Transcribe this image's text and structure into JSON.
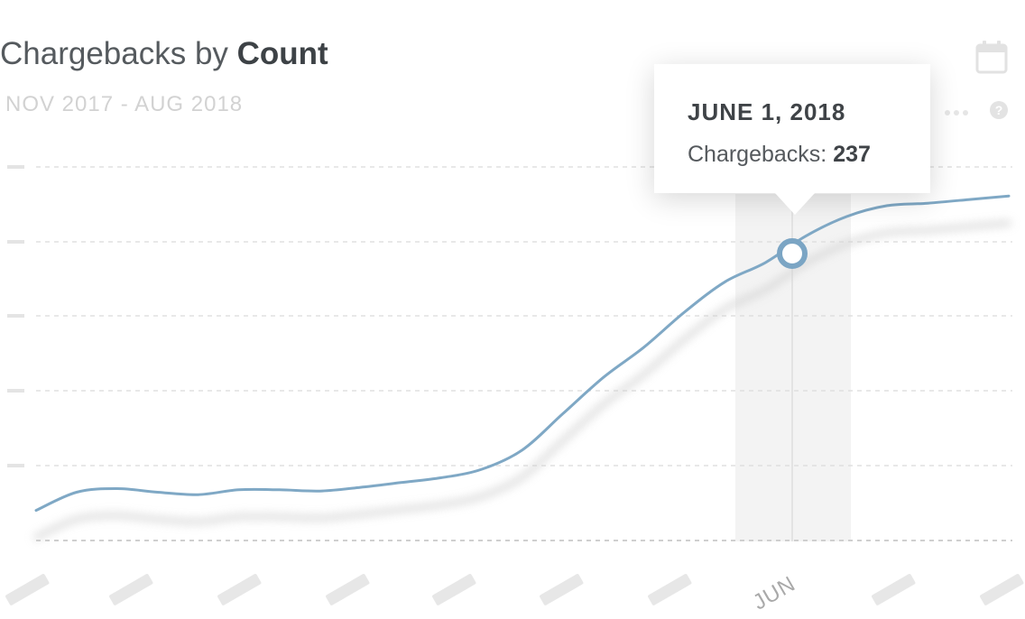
{
  "header": {
    "title_prefix": "Chargebacks by ",
    "title_emphasis": "Count",
    "subtitle": "NOV 2017 - AUG 2018"
  },
  "icons": {
    "calendar": "calendar-icon",
    "more": "more-icon",
    "help": "help-icon"
  },
  "tooltip": {
    "date": "JUNE 1, 2018",
    "label": "Chargebacks: ",
    "value": "237"
  },
  "colors": {
    "line": "#7fa8c5",
    "marker": "#7ba5c4",
    "grid": "#dcdcdc",
    "highlight_band": "#f3f3f3"
  },
  "chart_data": {
    "type": "line",
    "title": "Chargebacks by Count",
    "subtitle": "NOV 2017 - AUG 2018",
    "x_tick_labels": [
      "",
      "",
      "",
      "",
      "",
      "",
      "",
      "JUN",
      "",
      ""
    ],
    "highlighted_point": {
      "date": "JUNE 1, 2018",
      "label": "Chargebacks",
      "value": 237
    },
    "grid": true,
    "legend": "none",
    "series": [
      {
        "x": [
          0,
          1,
          2,
          3,
          4,
          5,
          6,
          7,
          8,
          9,
          10,
          11,
          12,
          13,
          14,
          15,
          16,
          17,
          18,
          19,
          20,
          21,
          22,
          23,
          24
        ],
        "values": [
          10,
          25,
          28,
          25,
          23,
          27,
          27,
          26,
          29,
          33,
          37,
          44,
          60,
          90,
          120,
          145,
          174,
          199,
          215,
          237,
          253,
          262,
          264,
          267,
          270
        ]
      }
    ]
  }
}
